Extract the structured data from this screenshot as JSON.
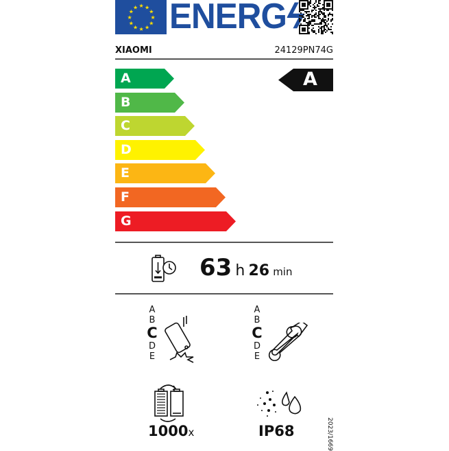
{
  "header": {
    "logo_text": "ENERG",
    "brand": "XIAOMI",
    "model": "24129PN74G"
  },
  "scale": {
    "classes": [
      {
        "label": "A",
        "color": "#00a651"
      },
      {
        "label": "B",
        "color": "#50b848"
      },
      {
        "label": "C",
        "color": "#bed630"
      },
      {
        "label": "D",
        "color": "#fff200"
      },
      {
        "label": "E",
        "color": "#fcb614"
      },
      {
        "label": "F",
        "color": "#f26722"
      },
      {
        "label": "G",
        "color": "#ed1c24"
      }
    ],
    "energy_class": "A"
  },
  "battery_endurance": {
    "hours": "63",
    "hours_unit": "h",
    "minutes": "26",
    "minutes_unit": "min"
  },
  "drop_resistance": {
    "scale": [
      "A",
      "B",
      "C",
      "D",
      "E"
    ],
    "selected": "C"
  },
  "repairability": {
    "scale": [
      "A",
      "B",
      "C",
      "D",
      "E"
    ],
    "selected": "C"
  },
  "battery_cycles": {
    "value": "1000",
    "unit": "x"
  },
  "ingress_protection": {
    "value": "IP68"
  },
  "regulation": "2023/1669"
}
